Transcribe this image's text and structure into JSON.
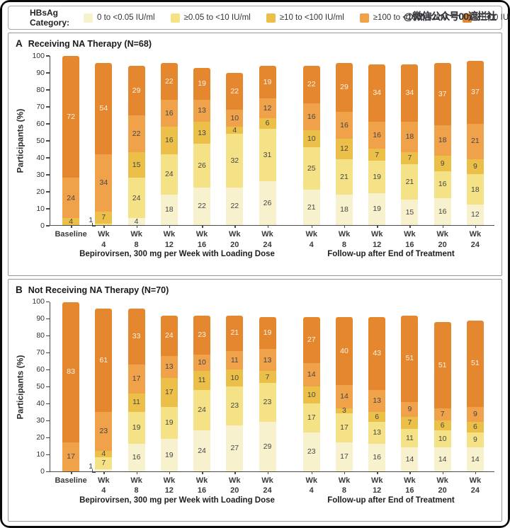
{
  "watermark": {
    "text": "@微信公众号00遮拦社",
    "color": "#35353d"
  },
  "legend": {
    "title": "HBsAg Category:",
    "categories": [
      {
        "label": "0 to <0.05 IU/ml",
        "color": "#F8F1CD",
        "text_color": "#454545"
      },
      {
        "label": "≥0.05 to <10 IU/ml",
        "color": "#F5E286",
        "text_color": "#454545"
      },
      {
        "label": "≥10 to <100 IU/ml",
        "color": "#ECBF48",
        "text_color": "#454545"
      },
      {
        "label": "≥100 to <1000 IU/ml",
        "color": "#F0A24B",
        "text_color": "#454545"
      },
      {
        "label": "≥1000 IU/ml",
        "color": "#E5872E",
        "text_color": "#fdf3e3"
      }
    ]
  },
  "chart_data": [
    {
      "type": "bar",
      "stacked": true,
      "panel_letter": "A",
      "title": "Receiving NA Therapy (N=68)",
      "ylabel": "Participants (%)",
      "ylim": [
        0,
        100
      ],
      "yticks": [
        0,
        10,
        20,
        30,
        40,
        50,
        60,
        70,
        80,
        90,
        100
      ],
      "grid": false,
      "legend_position": "top",
      "group_labels": [
        "Bepirovirsen, 300 mg per Week with Loading Dose",
        "Follow-up after End of Treatment"
      ],
      "bars": [
        {
          "label1": "Baseline",
          "label2": "",
          "group": 0,
          "segments": [
            {
              "c": 2,
              "v": 4
            },
            {
              "c": 3,
              "v": 24
            },
            {
              "c": 4,
              "v": 72
            }
          ]
        },
        {
          "label1": "Wk",
          "label2": "4",
          "group": 0,
          "callout": "1",
          "segments": [
            {
              "c": 1,
              "v": 1
            },
            {
              "c": 2,
              "v": 7
            },
            {
              "c": 3,
              "v": 34
            },
            {
              "c": 4,
              "v": 54
            }
          ]
        },
        {
          "label1": "Wk",
          "label2": "8",
          "group": 0,
          "segments": [
            {
              "c": 0,
              "v": 4
            },
            {
              "c": 1,
              "v": 24
            },
            {
              "c": 2,
              "v": 15
            },
            {
              "c": 3,
              "v": 22
            },
            {
              "c": 4,
              "v": 29
            }
          ]
        },
        {
          "label1": "Wk",
          "label2": "12",
          "group": 0,
          "segments": [
            {
              "c": 0,
              "v": 18
            },
            {
              "c": 1,
              "v": 24
            },
            {
              "c": 2,
              "v": 16
            },
            {
              "c": 3,
              "v": 16
            },
            {
              "c": 4,
              "v": 22
            }
          ]
        },
        {
          "label1": "Wk",
          "label2": "16",
          "group": 0,
          "segments": [
            {
              "c": 0,
              "v": 22
            },
            {
              "c": 1,
              "v": 26
            },
            {
              "c": 2,
              "v": 13
            },
            {
              "c": 3,
              "v": 13
            },
            {
              "c": 4,
              "v": 19
            }
          ]
        },
        {
          "label1": "Wk",
          "label2": "20",
          "group": 0,
          "segments": [
            {
              "c": 0,
              "v": 22
            },
            {
              "c": 1,
              "v": 32
            },
            {
              "c": 2,
              "v": 4
            },
            {
              "c": 3,
              "v": 10
            },
            {
              "c": 4,
              "v": 22
            }
          ]
        },
        {
          "label1": "Wk",
          "label2": "24",
          "group": 0,
          "segments": [
            {
              "c": 0,
              "v": 26
            },
            {
              "c": 1,
              "v": 31
            },
            {
              "c": 2,
              "v": 6
            },
            {
              "c": 3,
              "v": 12
            },
            {
              "c": 4,
              "v": 19
            }
          ]
        },
        {
          "label1": "Wk",
          "label2": "4",
          "group": 1,
          "segments": [
            {
              "c": 0,
              "v": 21
            },
            {
              "c": 1,
              "v": 25
            },
            {
              "c": 2,
              "v": 10
            },
            {
              "c": 3,
              "v": 16
            },
            {
              "c": 4,
              "v": 22
            }
          ]
        },
        {
          "label1": "Wk",
          "label2": "8",
          "group": 1,
          "segments": [
            {
              "c": 0,
              "v": 18
            },
            {
              "c": 1,
              "v": 21
            },
            {
              "c": 2,
              "v": 12
            },
            {
              "c": 3,
              "v": 16
            },
            {
              "c": 4,
              "v": 29
            }
          ]
        },
        {
          "label1": "Wk",
          "label2": "12",
          "group": 1,
          "segments": [
            {
              "c": 0,
              "v": 19
            },
            {
              "c": 1,
              "v": 19
            },
            {
              "c": 2,
              "v": 7
            },
            {
              "c": 3,
              "v": 16
            },
            {
              "c": 4,
              "v": 34
            }
          ]
        },
        {
          "label1": "Wk",
          "label2": "16",
          "group": 1,
          "segments": [
            {
              "c": 0,
              "v": 15
            },
            {
              "c": 1,
              "v": 21
            },
            {
              "c": 2,
              "v": 7
            },
            {
              "c": 3,
              "v": 18
            },
            {
              "c": 4,
              "v": 34
            }
          ]
        },
        {
          "label1": "Wk",
          "label2": "20",
          "group": 1,
          "segments": [
            {
              "c": 0,
              "v": 16
            },
            {
              "c": 1,
              "v": 16
            },
            {
              "c": 2,
              "v": 9
            },
            {
              "c": 3,
              "v": 18
            },
            {
              "c": 4,
              "v": 37
            }
          ]
        },
        {
          "label1": "Wk",
          "label2": "24",
          "group": 1,
          "segments": [
            {
              "c": 0,
              "v": 12
            },
            {
              "c": 1,
              "v": 18
            },
            {
              "c": 2,
              "v": 9
            },
            {
              "c": 3,
              "v": 21
            },
            {
              "c": 4,
              "v": 37
            }
          ]
        }
      ]
    },
    {
      "type": "bar",
      "stacked": true,
      "panel_letter": "B",
      "title": "Not Receiving NA Therapy (N=70)",
      "ylabel": "Participants (%)",
      "ylim": [
        0,
        100
      ],
      "yticks": [
        0,
        10,
        20,
        30,
        40,
        50,
        60,
        70,
        80,
        90,
        100
      ],
      "grid": false,
      "legend_position": "top",
      "group_labels": [
        "Bepirovirsen, 300 mg per Week with Loading Dose",
        "Follow-up after End of Treatment"
      ],
      "bars": [
        {
          "label1": "Baseline",
          "label2": "",
          "group": 0,
          "segments": [
            {
              "c": 3,
              "v": 17
            },
            {
              "c": 4,
              "v": 83
            }
          ]
        },
        {
          "label1": "Wk",
          "label2": "4",
          "group": 0,
          "callout": "1",
          "segments": [
            {
              "c": 0,
              "v": 1
            },
            {
              "c": 1,
              "v": 7
            },
            {
              "c": 2,
              "v": 4
            },
            {
              "c": 3,
              "v": 23
            },
            {
              "c": 4,
              "v": 61
            }
          ]
        },
        {
          "label1": "Wk",
          "label2": "8",
          "group": 0,
          "segments": [
            {
              "c": 0,
              "v": 16
            },
            {
              "c": 1,
              "v": 19
            },
            {
              "c": 2,
              "v": 11
            },
            {
              "c": 3,
              "v": 17
            },
            {
              "c": 4,
              "v": 33
            }
          ]
        },
        {
          "label1": "Wk",
          "label2": "12",
          "group": 0,
          "segments": [
            {
              "c": 0,
              "v": 19
            },
            {
              "c": 1,
              "v": 19
            },
            {
              "c": 2,
              "v": 17
            },
            {
              "c": 3,
              "v": 13
            },
            {
              "c": 4,
              "v": 24
            }
          ]
        },
        {
          "label1": "Wk",
          "label2": "16",
          "group": 0,
          "segments": [
            {
              "c": 0,
              "v": 24
            },
            {
              "c": 1,
              "v": 24
            },
            {
              "c": 2,
              "v": 11
            },
            {
              "c": 3,
              "v": 10
            },
            {
              "c": 4,
              "v": 23
            }
          ]
        },
        {
          "label1": "Wk",
          "label2": "20",
          "group": 0,
          "segments": [
            {
              "c": 0,
              "v": 27
            },
            {
              "c": 1,
              "v": 23
            },
            {
              "c": 2,
              "v": 10
            },
            {
              "c": 3,
              "v": 11
            },
            {
              "c": 4,
              "v": 21
            }
          ]
        },
        {
          "label1": "Wk",
          "label2": "24",
          "group": 0,
          "segments": [
            {
              "c": 0,
              "v": 29
            },
            {
              "c": 1,
              "v": 23
            },
            {
              "c": 2,
              "v": 7
            },
            {
              "c": 3,
              "v": 13
            },
            {
              "c": 4,
              "v": 19
            }
          ]
        },
        {
          "label1": "Wk",
          "label2": "4",
          "group": 1,
          "segments": [
            {
              "c": 0,
              "v": 23
            },
            {
              "c": 1,
              "v": 17
            },
            {
              "c": 2,
              "v": 10
            },
            {
              "c": 3,
              "v": 14
            },
            {
              "c": 4,
              "v": 27
            }
          ]
        },
        {
          "label1": "Wk",
          "label2": "8",
          "group": 1,
          "segments": [
            {
              "c": 0,
              "v": 17
            },
            {
              "c": 1,
              "v": 17
            },
            {
              "c": 2,
              "v": 3
            },
            {
              "c": 3,
              "v": 14
            },
            {
              "c": 4,
              "v": 40
            }
          ]
        },
        {
          "label1": "Wk",
          "label2": "12",
          "group": 1,
          "segments": [
            {
              "c": 0,
              "v": 16
            },
            {
              "c": 1,
              "v": 13
            },
            {
              "c": 2,
              "v": 6
            },
            {
              "c": 3,
              "v": 13
            },
            {
              "c": 4,
              "v": 43
            }
          ]
        },
        {
          "label1": "Wk",
          "label2": "16",
          "group": 1,
          "segments": [
            {
              "c": 0,
              "v": 14
            },
            {
              "c": 1,
              "v": 11
            },
            {
              "c": 2,
              "v": 7
            },
            {
              "c": 3,
              "v": 9
            },
            {
              "c": 4,
              "v": 51
            }
          ]
        },
        {
          "label1": "Wk",
          "label2": "20",
          "group": 1,
          "segments": [
            {
              "c": 0,
              "v": 14
            },
            {
              "c": 1,
              "v": 10
            },
            {
              "c": 2,
              "v": 6
            },
            {
              "c": 3,
              "v": 7
            },
            {
              "c": 4,
              "v": 51
            }
          ]
        },
        {
          "label1": "Wk",
          "label2": "24",
          "group": 1,
          "segments": [
            {
              "c": 0,
              "v": 14
            },
            {
              "c": 1,
              "v": 9
            },
            {
              "c": 2,
              "v": 6
            },
            {
              "c": 3,
              "v": 9
            },
            {
              "c": 4,
              "v": 51
            }
          ]
        }
      ]
    }
  ]
}
